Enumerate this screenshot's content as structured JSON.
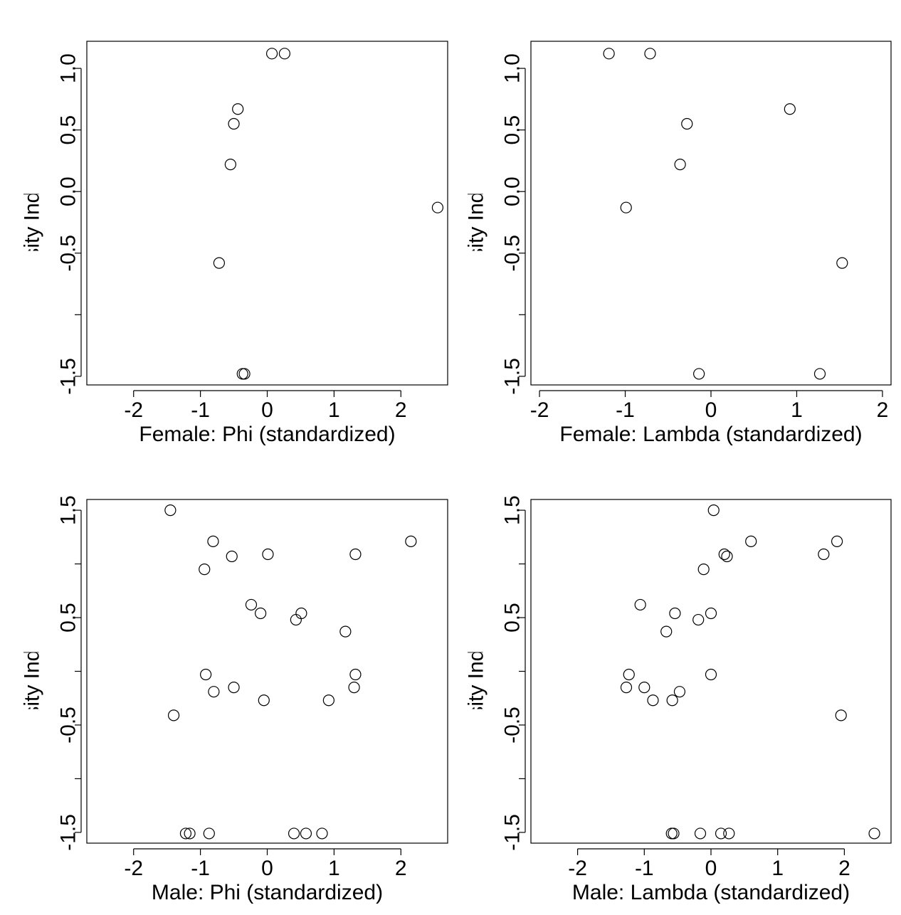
{
  "chart_data": [
    {
      "type": "scatter",
      "xlabel": "Female: Phi (standardized)",
      "ylabel": "Shannon Diversity Index (standardized)",
      "xlim": [
        -2.7,
        2.7
      ],
      "ylim": [
        -1.57,
        1.22
      ],
      "xticks": [
        -2,
        -1,
        0,
        1,
        2
      ],
      "yticks": [
        -1.5,
        -1.0,
        -0.5,
        0.0,
        0.5,
        1.0
      ],
      "ytick_labels": [
        "-1.5",
        "",
        "-0.5",
        "0.0",
        "0.5",
        "1.0"
      ],
      "points": [
        {
          "x": 0.07,
          "y": 1.12
        },
        {
          "x": 0.26,
          "y": 1.12
        },
        {
          "x": -0.44,
          "y": 0.67
        },
        {
          "x": -0.5,
          "y": 0.55
        },
        {
          "x": -0.55,
          "y": 0.22
        },
        {
          "x": 2.55,
          "y": -0.13
        },
        {
          "x": -0.72,
          "y": -0.58
        },
        {
          "x": -0.37,
          "y": -1.48
        },
        {
          "x": -0.34,
          "y": -1.48
        }
      ]
    },
    {
      "type": "scatter",
      "xlabel": "Female: Lambda (standardized)",
      "ylabel": "Shannon Diversity Index (standardized)",
      "xlim": [
        -2.1,
        2.1
      ],
      "ylim": [
        -1.57,
        1.22
      ],
      "xticks": [
        -2,
        -1,
        0,
        1,
        2
      ],
      "yticks": [
        -1.5,
        -1.0,
        -0.5,
        0.0,
        0.5,
        1.0
      ],
      "ytick_labels": [
        "-1.5",
        "",
        "-0.5",
        "0.0",
        "0.5",
        "1.0"
      ],
      "points": [
        {
          "x": -1.19,
          "y": 1.12
        },
        {
          "x": -0.71,
          "y": 1.12
        },
        {
          "x": 0.92,
          "y": 0.67
        },
        {
          "x": -0.28,
          "y": 0.55
        },
        {
          "x": -0.36,
          "y": 0.22
        },
        {
          "x": -0.99,
          "y": -0.13
        },
        {
          "x": 1.53,
          "y": -0.58
        },
        {
          "x": -0.14,
          "y": -1.48
        },
        {
          "x": 1.27,
          "y": -1.48
        }
      ]
    },
    {
      "type": "scatter",
      "xlabel": "Male: Phi (standardized)",
      "ylabel": "Shannon Diversity Index (standardized)",
      "xlim": [
        -2.7,
        2.7
      ],
      "ylim": [
        -1.6,
        1.6
      ],
      "xticks": [
        -2,
        -1,
        0,
        1,
        2
      ],
      "yticks": [
        -1.5,
        -1.0,
        -0.5,
        0.0,
        0.5,
        1.0,
        1.5
      ],
      "ytick_labels": [
        "-1.5",
        "",
        "-0.5",
        "",
        "0.5",
        "",
        "1.5"
      ],
      "points": [
        {
          "x": -1.45,
          "y": 1.5
        },
        {
          "x": -0.81,
          "y": 1.21
        },
        {
          "x": 2.15,
          "y": 1.21
        },
        {
          "x": -0.53,
          "y": 1.07
        },
        {
          "x": 0.01,
          "y": 1.09
        },
        {
          "x": 1.32,
          "y": 1.09
        },
        {
          "x": -0.94,
          "y": 0.95
        },
        {
          "x": -0.24,
          "y": 0.62
        },
        {
          "x": -0.1,
          "y": 0.54
        },
        {
          "x": 0.51,
          "y": 0.54
        },
        {
          "x": 0.43,
          "y": 0.48
        },
        {
          "x": 1.17,
          "y": 0.37
        },
        {
          "x": -0.92,
          "y": -0.03
        },
        {
          "x": 1.32,
          "y": -0.03
        },
        {
          "x": -0.8,
          "y": -0.19
        },
        {
          "x": -0.5,
          "y": -0.15
        },
        {
          "x": 1.3,
          "y": -0.15
        },
        {
          "x": -0.05,
          "y": -0.27
        },
        {
          "x": 0.92,
          "y": -0.27
        },
        {
          "x": -1.4,
          "y": -0.41
        },
        {
          "x": -1.22,
          "y": -1.51
        },
        {
          "x": -1.16,
          "y": -1.51
        },
        {
          "x": -0.87,
          "y": -1.51
        },
        {
          "x": 0.4,
          "y": -1.51
        },
        {
          "x": 0.58,
          "y": -1.51
        },
        {
          "x": 0.82,
          "y": -1.51
        }
      ]
    },
    {
      "type": "scatter",
      "xlabel": "Male: Lambda (standardized)",
      "ylabel": "Shannon Diversity Index (standardized)",
      "xlim": [
        -2.7,
        2.7
      ],
      "ylim": [
        -1.6,
        1.6
      ],
      "xticks": [
        -2,
        -1,
        0,
        1,
        2
      ],
      "yticks": [
        -1.5,
        -1.0,
        -0.5,
        0.0,
        0.5,
        1.0,
        1.5
      ],
      "ytick_labels": [
        "-1.5",
        "",
        "-0.5",
        "",
        "0.5",
        "",
        "1.5"
      ],
      "points": [
        {
          "x": 0.04,
          "y": 1.5
        },
        {
          "x": 0.6,
          "y": 1.21
        },
        {
          "x": 1.89,
          "y": 1.21
        },
        {
          "x": 0.2,
          "y": 1.09
        },
        {
          "x": 0.24,
          "y": 1.07
        },
        {
          "x": 1.69,
          "y": 1.09
        },
        {
          "x": -0.11,
          "y": 0.95
        },
        {
          "x": -1.06,
          "y": 0.62
        },
        {
          "x": -0.54,
          "y": 0.54
        },
        {
          "x": 0.0,
          "y": 0.54
        },
        {
          "x": -0.19,
          "y": 0.48
        },
        {
          "x": -0.67,
          "y": 0.37
        },
        {
          "x": -1.23,
          "y": -0.03
        },
        {
          "x": 0.0,
          "y": -0.03
        },
        {
          "x": -1.27,
          "y": -0.15
        },
        {
          "x": -1.0,
          "y": -0.15
        },
        {
          "x": -0.47,
          "y": -0.19
        },
        {
          "x": -0.87,
          "y": -0.27
        },
        {
          "x": -0.58,
          "y": -0.27
        },
        {
          "x": 1.95,
          "y": -0.41
        },
        {
          "x": -0.59,
          "y": -1.51
        },
        {
          "x": -0.56,
          "y": -1.51
        },
        {
          "x": -0.16,
          "y": -1.51
        },
        {
          "x": 0.15,
          "y": -1.51
        },
        {
          "x": 0.27,
          "y": -1.51
        },
        {
          "x": 2.45,
          "y": -1.51
        }
      ]
    }
  ]
}
